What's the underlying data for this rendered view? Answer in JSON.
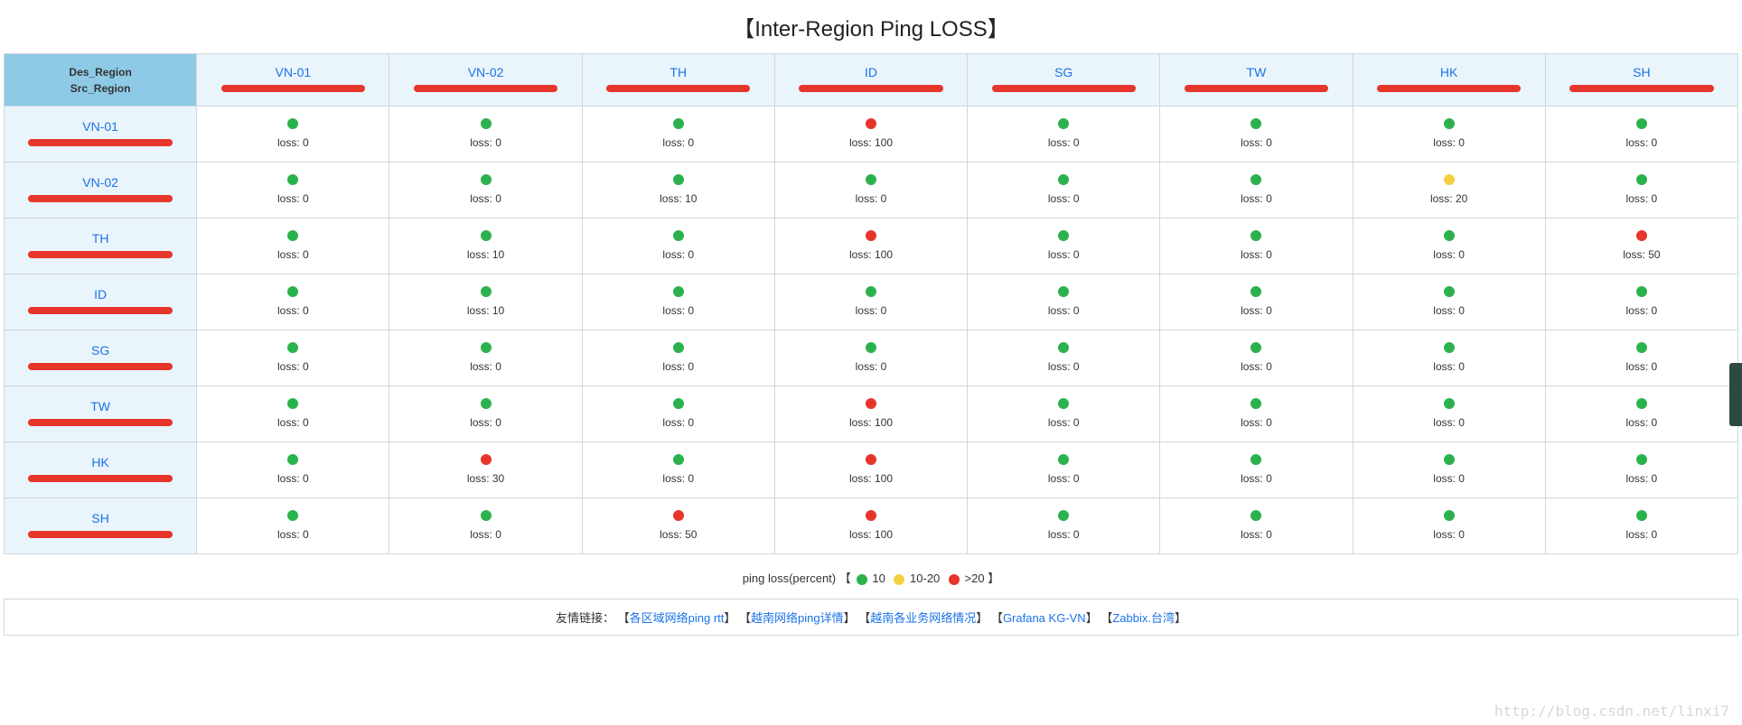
{
  "title": "【Inter-Region Ping LOSS】",
  "corner": {
    "line1": "Des_Region",
    "line2": "Src_Region"
  },
  "columns": [
    "VN-01",
    "VN-02",
    "TH",
    "ID",
    "SG",
    "TW",
    "HK",
    "SH"
  ],
  "rows": [
    "VN-01",
    "VN-02",
    "TH",
    "ID",
    "SG",
    "TW",
    "HK",
    "SH"
  ],
  "loss_label_prefix": "loss: ",
  "colors": {
    "green": "#2bb24c",
    "yellow": "#f4d03f",
    "red": "#e6352b",
    "header_bg": "#eaf4fb",
    "corner_bg": "#8ecae6",
    "border": "#d0d7de",
    "link": "#1a73e8"
  },
  "thresholds": {
    "green_max": 10,
    "yellow_max": 20
  },
  "cells": [
    [
      {
        "loss": 0
      },
      {
        "loss": 0
      },
      {
        "loss": 0
      },
      {
        "loss": 100
      },
      {
        "loss": 0
      },
      {
        "loss": 0
      },
      {
        "loss": 0
      },
      {
        "loss": 0
      }
    ],
    [
      {
        "loss": 0
      },
      {
        "loss": 0
      },
      {
        "loss": 10
      },
      {
        "loss": 0
      },
      {
        "loss": 0
      },
      {
        "loss": 0
      },
      {
        "loss": 20
      },
      {
        "loss": 0
      }
    ],
    [
      {
        "loss": 0
      },
      {
        "loss": 10
      },
      {
        "loss": 0
      },
      {
        "loss": 100
      },
      {
        "loss": 0
      },
      {
        "loss": 0
      },
      {
        "loss": 0
      },
      {
        "loss": 50
      }
    ],
    [
      {
        "loss": 0
      },
      {
        "loss": 10
      },
      {
        "loss": 0
      },
      {
        "loss": 0
      },
      {
        "loss": 0
      },
      {
        "loss": 0
      },
      {
        "loss": 0
      },
      {
        "loss": 0
      }
    ],
    [
      {
        "loss": 0
      },
      {
        "loss": 0
      },
      {
        "loss": 0
      },
      {
        "loss": 0
      },
      {
        "loss": 0
      },
      {
        "loss": 0
      },
      {
        "loss": 0
      },
      {
        "loss": 0
      }
    ],
    [
      {
        "loss": 0
      },
      {
        "loss": 0
      },
      {
        "loss": 0
      },
      {
        "loss": 100
      },
      {
        "loss": 0
      },
      {
        "loss": 0
      },
      {
        "loss": 0
      },
      {
        "loss": 0
      }
    ],
    [
      {
        "loss": 0
      },
      {
        "loss": 30
      },
      {
        "loss": 0
      },
      {
        "loss": 100
      },
      {
        "loss": 0
      },
      {
        "loss": 0
      },
      {
        "loss": 0
      },
      {
        "loss": 0
      }
    ],
    [
      {
        "loss": 0
      },
      {
        "loss": 0
      },
      {
        "loss": 50
      },
      {
        "loss": 100
      },
      {
        "loss": 0
      },
      {
        "loss": 0
      },
      {
        "loss": 0
      },
      {
        "loss": 0
      }
    ]
  ],
  "legend": {
    "prefix": "ping loss(percent) 【",
    "items": [
      {
        "color_key": "green",
        "label": "10"
      },
      {
        "color_key": "yellow",
        "label": "10-20"
      },
      {
        "color_key": "red",
        "label": ">20"
      }
    ],
    "suffix": "】"
  },
  "footer": {
    "label": "友情链接：",
    "links": [
      "各区域网络ping rtt",
      "越南网络ping详情",
      "越南各业务网络情况",
      "Grafana KG-VN",
      "Zabbix.台湾"
    ]
  },
  "watermark": "http://blog.csdn.net/linxi7"
}
